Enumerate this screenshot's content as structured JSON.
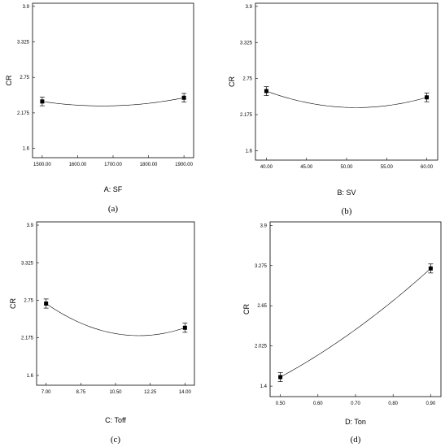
{
  "chart_data": [
    {
      "type": "line",
      "panel_label": "(a)",
      "xlabel": "A: SF",
      "ylabel": "CR",
      "xlim": [
        1500,
        1900
      ],
      "ylim": [
        1.6,
        3.9
      ],
      "xticks": [
        "1500.00",
        "1600.00",
        "1700.00",
        "1800.00",
        "1900.00"
      ],
      "xtick_values": [
        1500,
        1600,
        1700,
        1800,
        1900
      ],
      "yticks": [
        "1.6",
        "2.175",
        "2.75",
        "3.325",
        "3.9"
      ],
      "ytick_values": [
        1.6,
        2.175,
        2.75,
        3.325,
        3.9
      ],
      "curve": {
        "x": [
          1500,
          1700,
          1900
        ],
        "y": [
          2.36,
          2.29,
          2.42
        ]
      },
      "points": [
        {
          "x": 1500,
          "y": 2.36,
          "err": 0.07
        },
        {
          "x": 1900,
          "y": 2.42,
          "err": 0.07
        }
      ]
    },
    {
      "type": "line",
      "panel_label": "(b)",
      "xlabel": "B: SV",
      "ylabel": "CR",
      "xlim": [
        40,
        60
      ],
      "ylim": [
        1.6,
        3.9
      ],
      "xticks": [
        "40.00",
        "45.00",
        "50.00",
        "55.00",
        "60.00"
      ],
      "xtick_values": [
        40,
        45,
        50,
        55,
        60
      ],
      "yticks": [
        "1.6",
        "2.175",
        "2.75",
        "3.325",
        "3.9"
      ],
      "ytick_values": [
        1.6,
        2.175,
        2.75,
        3.325,
        3.9
      ],
      "curve": {
        "x": [
          40,
          50,
          60
        ],
        "y": [
          2.55,
          2.29,
          2.45
        ]
      },
      "points": [
        {
          "x": 40,
          "y": 2.55,
          "err": 0.07
        },
        {
          "x": 60,
          "y": 2.45,
          "err": 0.07
        }
      ]
    },
    {
      "type": "line",
      "panel_label": "(c)",
      "xlabel": "C: Toff",
      "ylabel": "CR",
      "xlim": [
        7,
        14
      ],
      "ylim": [
        1.6,
        3.9
      ],
      "xticks": [
        "7.00",
        "8.75",
        "10.50",
        "12.25",
        "14.00"
      ],
      "xtick_values": [
        7,
        8.75,
        10.5,
        12.25,
        14
      ],
      "yticks": [
        "1.6",
        "2.175",
        "2.75",
        "3.325",
        "3.9"
      ],
      "ytick_values": [
        1.6,
        2.175,
        2.75,
        3.325,
        3.9
      ],
      "curve": {
        "x": [
          7,
          10.5,
          14
        ],
        "y": [
          2.7,
          2.24,
          2.33
        ]
      },
      "points": [
        {
          "x": 7,
          "y": 2.7,
          "err": 0.07
        },
        {
          "x": 14,
          "y": 2.33,
          "err": 0.07
        }
      ]
    },
    {
      "type": "line",
      "panel_label": "(d)",
      "xlabel": "D: Ton",
      "ylabel": "CR",
      "xlim": [
        0.5,
        0.9
      ],
      "ylim": [
        1.4,
        3.9
      ],
      "xticks": [
        "0.50",
        "0.60",
        "0.70",
        "0.80",
        "0.90"
      ],
      "xtick_values": [
        0.5,
        0.6,
        0.7,
        0.8,
        0.9
      ],
      "yticks": [
        "1.4",
        "2.025",
        "2.65",
        "3.275",
        "3.9"
      ],
      "ytick_values": [
        1.4,
        2.025,
        2.65,
        3.275,
        3.9
      ],
      "curve": {
        "x": [
          0.5,
          0.7,
          0.9
        ],
        "y": [
          1.54,
          2.28,
          3.23
        ]
      },
      "points": [
        {
          "x": 0.5,
          "y": 1.54,
          "err": 0.07
        },
        {
          "x": 0.9,
          "y": 3.23,
          "err": 0.07
        }
      ]
    }
  ]
}
